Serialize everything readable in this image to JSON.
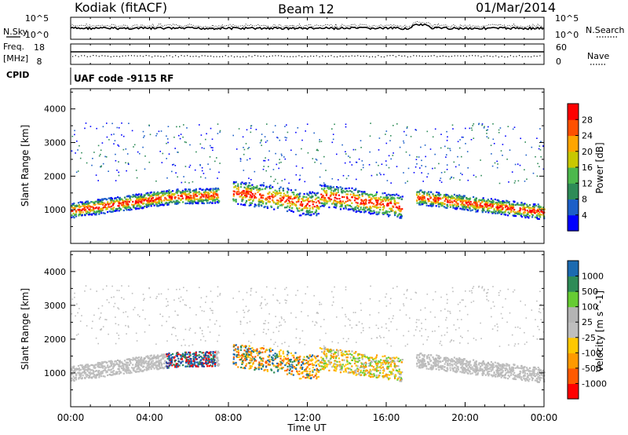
{
  "header": {
    "station": "Kodiak (fitACF)",
    "beam": "Beam 12",
    "date": "01/Mar/2014"
  },
  "noise_panel": {
    "left_label": "N.Sky",
    "right_label": "N.Search",
    "left_ticks": [
      "10^5",
      "10^0"
    ],
    "right_ticks": [
      "10^5",
      "10^0"
    ]
  },
  "freq_panel": {
    "left_label_line1": "Freq.",
    "left_label_line2": "[MHz]",
    "right_label": "Nave",
    "left_ticks": [
      "18",
      "8"
    ],
    "right_ticks": [
      "60",
      "0"
    ]
  },
  "cpid_panel": {
    "label": "CPID",
    "text": "UAF code -9115 RF"
  },
  "colors": {
    "power": [
      "#0000ff",
      "#1c5fc8",
      "#2e8b57",
      "#4db84d",
      "#c8c800",
      "#ffa500",
      "#ff5000",
      "#ff0000"
    ],
    "velocity": [
      "#ff0000",
      "#ff5a00",
      "#ff9a00",
      "#ffc800",
      "#bebebe",
      "#b4b4b4",
      "#66cc33",
      "#2e8b57",
      "#1c6ab0",
      "#1f3fa0"
    ]
  },
  "chart_data": [
    {
      "type": "heatmap",
      "ylabel": "Slant Range [km]",
      "xlabel": "",
      "x_ticks": [
        "00:00",
        "04:00",
        "08:00",
        "12:00",
        "16:00",
        "20:00",
        "00:00"
      ],
      "x_range_hours": [
        0,
        24
      ],
      "y_ticks": [
        1000,
        2000,
        3000,
        4000
      ],
      "ylim": [
        0,
        4600
      ],
      "colorbar": {
        "label": "Power [dB]",
        "range": [
          0,
          32
        ],
        "ticks": [
          4,
          8,
          12,
          16,
          20,
          24,
          28
        ]
      }
    },
    {
      "type": "heatmap",
      "ylabel": "Slant Range [km]",
      "xlabel": "Time UT",
      "x_ticks": [
        "00:00",
        "04:00",
        "08:00",
        "12:00",
        "16:00",
        "20:00",
        "00:00"
      ],
      "x_range_hours": [
        0,
        24
      ],
      "y_ticks": [
        1000,
        2000,
        3000,
        4000
      ],
      "ylim": [
        0,
        4600
      ],
      "colorbar": {
        "label": "Velocity [m s^-1]",
        "ticks": [
          "1000",
          "500",
          "100",
          "25",
          "-25",
          "-100",
          "-500",
          "-1000"
        ]
      }
    }
  ]
}
